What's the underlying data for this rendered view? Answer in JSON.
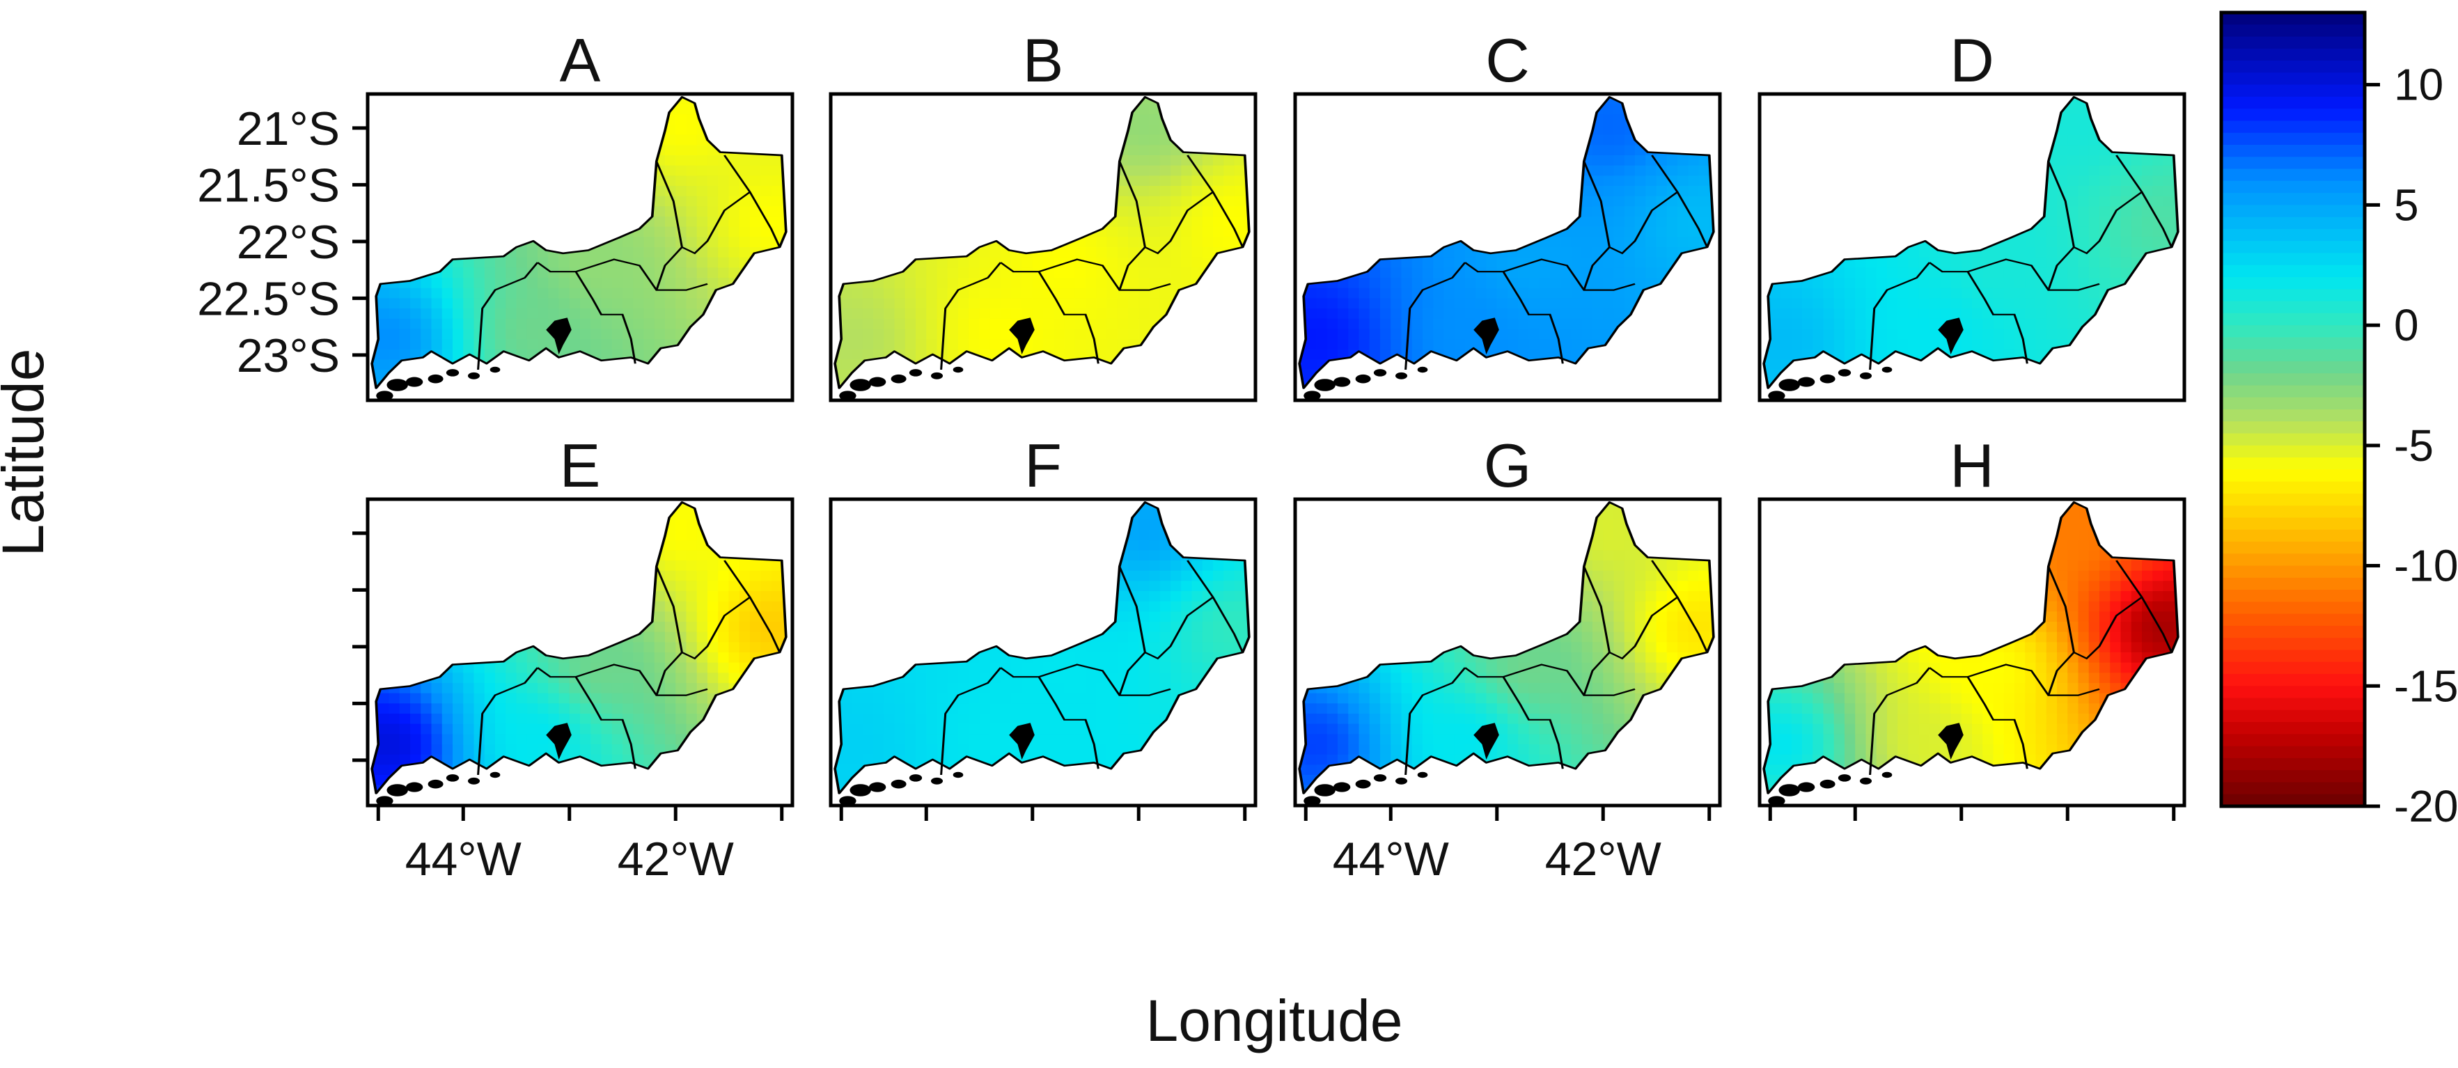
{
  "figure": {
    "x_axis_title": "Longitude",
    "y_axis_title": "Latitude"
  },
  "panels": [
    {
      "label": "A",
      "fields": {
        "west": 6,
        "south": -2,
        "east": -6,
        "northeast": -6,
        "center": -3
      }
    },
    {
      "label": "B",
      "fields": {
        "west": -4,
        "south": -6,
        "east": -6,
        "northeast": -3,
        "center": -6
      }
    },
    {
      "label": "C",
      "fields": {
        "west": 9,
        "south": 6,
        "east": 4,
        "northeast": 7,
        "center": 5
      }
    },
    {
      "label": "D",
      "fields": {
        "west": 4,
        "south": 2,
        "east": -1,
        "northeast": 1,
        "center": 1
      }
    },
    {
      "label": "E",
      "fields": {
        "west": 10,
        "south": 2,
        "east": -8,
        "northeast": -6,
        "center": -2
      }
    },
    {
      "label": "F",
      "fields": {
        "west": 3,
        "south": 2,
        "east": 0,
        "northeast": 5,
        "center": 2
      }
    },
    {
      "label": "G",
      "fields": {
        "west": 8,
        "south": 2,
        "east": -7,
        "northeast": -5,
        "center": -2
      }
    },
    {
      "label": "H",
      "fields": {
        "west": 2,
        "south": -5,
        "east": -18,
        "northeast": -11,
        "center": -6
      }
    }
  ],
  "x_axis": {
    "ticks": [
      {
        "lon": -44.8,
        "label": ""
      },
      {
        "lon": -44.0,
        "label": "44°W"
      },
      {
        "lon": -43.0,
        "label": ""
      },
      {
        "lon": -42.0,
        "label": "42°W"
      },
      {
        "lon": -41.0,
        "label": ""
      }
    ],
    "labelled_columns": [
      0,
      2
    ]
  },
  "y_axis": {
    "ticks": [
      {
        "lat": -21.0,
        "label": "21°S"
      },
      {
        "lat": -21.5,
        "label": "21.5°S"
      },
      {
        "lat": -22.0,
        "label": "22°S"
      },
      {
        "lat": -22.5,
        "label": "22.5°S"
      },
      {
        "lat": -23.0,
        "label": "23°S"
      }
    ]
  },
  "colorbar": {
    "min": -20,
    "max": 13,
    "ticks": [
      {
        "value": 10,
        "label": "10"
      },
      {
        "value": 5,
        "label": "5"
      },
      {
        "value": 0,
        "label": "0"
      },
      {
        "value": -5,
        "label": "-5"
      },
      {
        "value": -10,
        "label": "-10"
      },
      {
        "value": -15,
        "label": "-15"
      },
      {
        "value": -20,
        "label": "-20"
      }
    ],
    "color_stops": [
      {
        "value": 13,
        "color": "#00007a"
      },
      {
        "value": 9,
        "color": "#0018ff"
      },
      {
        "value": 6,
        "color": "#0090ff"
      },
      {
        "value": 2,
        "color": "#00e6f0"
      },
      {
        "value": 0,
        "color": "#30e8c0"
      },
      {
        "value": -2,
        "color": "#6fd68c"
      },
      {
        "value": -4,
        "color": "#b4e060"
      },
      {
        "value": -6,
        "color": "#ffff00"
      },
      {
        "value": -9,
        "color": "#ffb400"
      },
      {
        "value": -12,
        "color": "#ff6000"
      },
      {
        "value": -15,
        "color": "#ff1010"
      },
      {
        "value": -17,
        "color": "#c40000"
      },
      {
        "value": -20,
        "color": "#6a0000"
      }
    ]
  },
  "map_extent": {
    "lon_min": -44.9,
    "lon_max": -40.9,
    "lat_min": -23.4,
    "lat_max": -20.7
  }
}
